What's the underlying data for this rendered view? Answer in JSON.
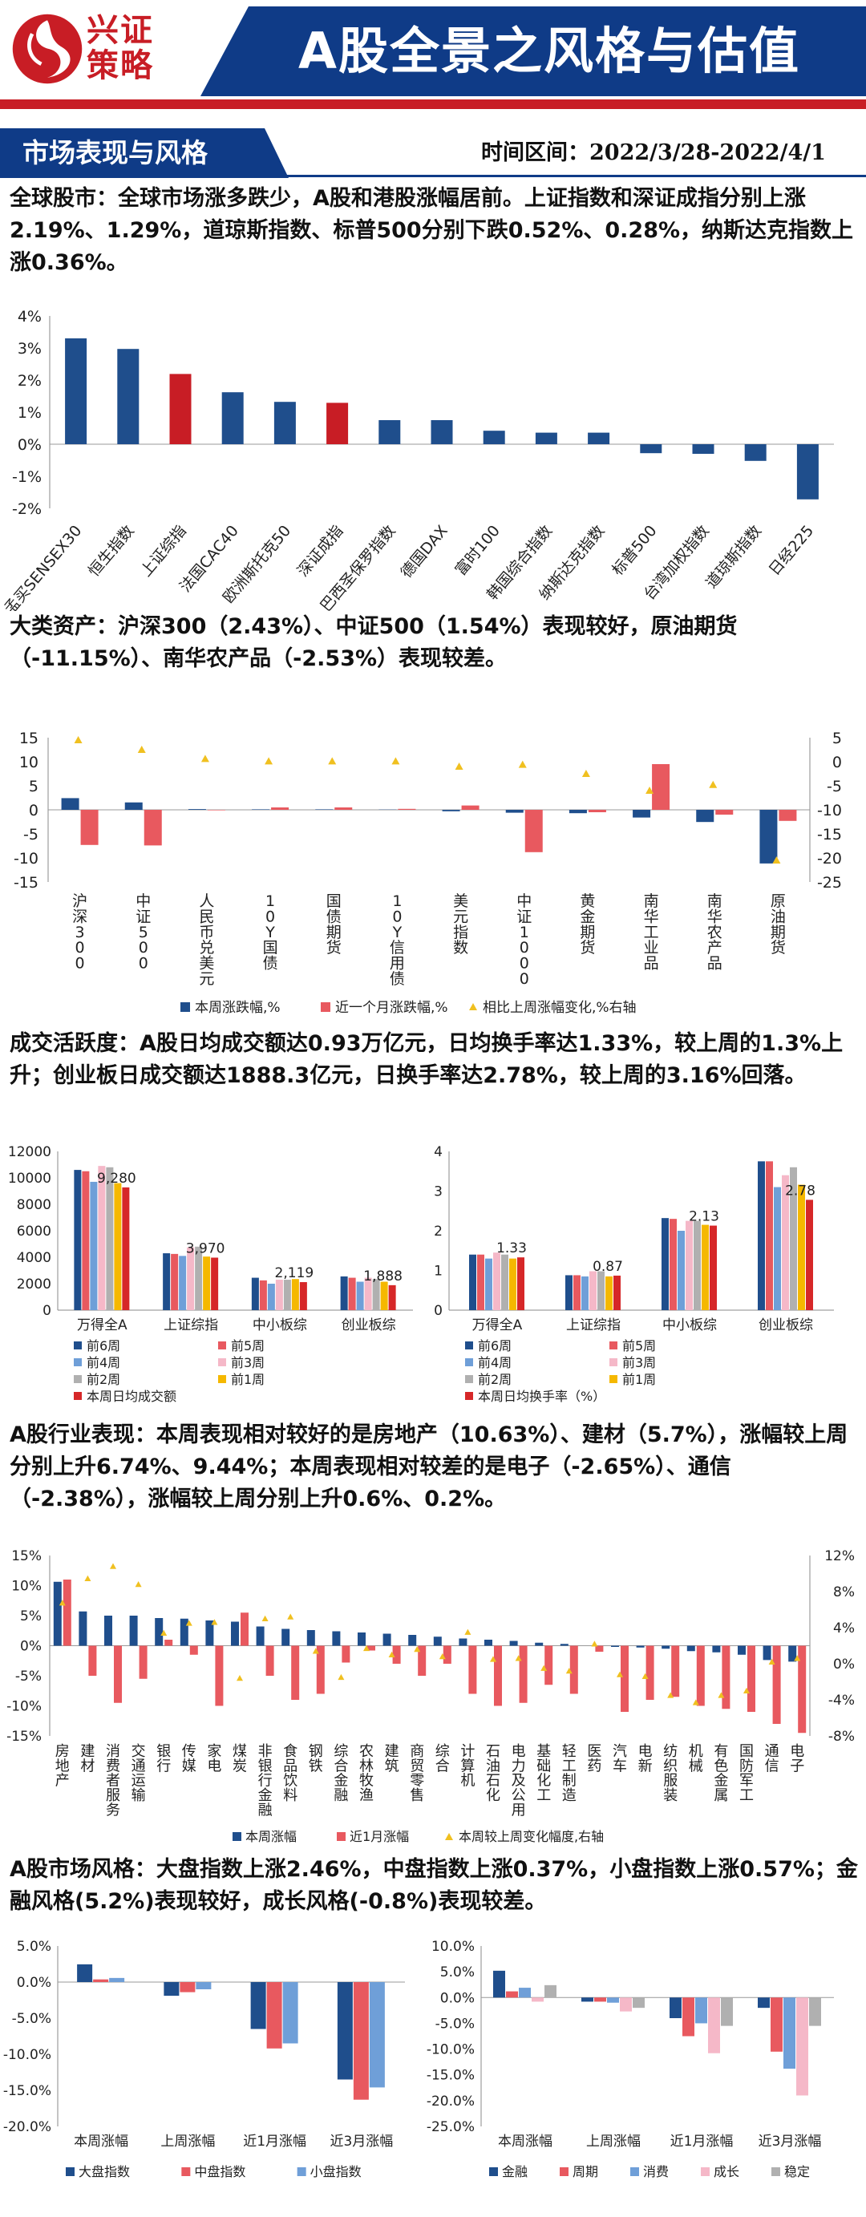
{
  "header": {
    "logo_line1": "兴证",
    "logo_line2": "策略",
    "title": "A股全景之风格与估值",
    "section_tab": "市场表现与风格",
    "time_range": "时间区间：2022/3/28-2022/4/1"
  },
  "paragraphs": {
    "global": "全球股市：全球市场涨多跌少，A股和港股涨幅居前。上证指数和深证成指分别上涨2.19%、1.29%，道琼斯指数、标普500分别下跌0.52%、0.28%，纳斯达克指数上涨0.36%。",
    "assets": "大类资产：沪深300（2.43%）、中证500（1.54%）表现较好，原油期货（-11.15%）、南华农产品（-2.53%）表现较差。",
    "turnover": "成交活跃度：A股日均成交额达0.93万亿元，日均换手率达1.33%，较上周的1.3%上升；创业板日成交额达1888.3亿元，日换手率达2.78%，较上周的3.16%回落。",
    "industry": "A股行业表现：本周表现相对较好的是房地产（10.63%）、建材（5.7%），涨幅较上周分别上升6.74%、9.44%；本周表现相对较差的是电子（-2.65%）、通信（-2.38%），涨幅较上周分别上升0.6%、0.2%。",
    "style": "A股市场风格：大盘指数上涨2.46%，中盘指数上涨0.37%，小盘指数上涨0.57%；金融风格(5.2%)表现较好，成长风格(-0.8%)表现较差。"
  },
  "colors": {
    "navy": "#1f4e8c",
    "red": "#c81d25",
    "salmon": "#e8595f",
    "gold": "#f0c020",
    "c_w6": "#1f4e8c",
    "c_w5": "#e8595f",
    "c_w4": "#6f9fd8",
    "c_w3": "#f5b8c8",
    "c_w2": "#b0b0b0",
    "c_w1": "#f5b800",
    "c_cur": "#d62728"
  },
  "chart_data": [
    {
      "id": "global",
      "type": "bar",
      "categories": [
        "孟买SENSEX30",
        "恒生指数",
        "上证综指",
        "法国CAC40",
        "欧洲斯托克50",
        "深证成指",
        "巴西圣保罗指数",
        "德国DAX",
        "富时100",
        "韩国综合指数",
        "纳斯达克指数",
        "标普500",
        "台湾加权指数",
        "道琼斯指数",
        "日经225"
      ],
      "values": [
        3.3,
        2.97,
        2.19,
        1.62,
        1.32,
        1.29,
        0.75,
        0.75,
        0.42,
        0.36,
        0.36,
        -0.28,
        -0.3,
        -0.52,
        -1.72
      ],
      "highlight": [
        false,
        false,
        true,
        false,
        false,
        true,
        false,
        false,
        false,
        false,
        false,
        false,
        false,
        false,
        false
      ],
      "yticks": [
        "4%",
        "3%",
        "2%",
        "1%",
        "0%",
        "-1%",
        "-2%"
      ],
      "ylim": [
        -2,
        4
      ]
    },
    {
      "id": "assets",
      "type": "bar",
      "categories": [
        "沪深300",
        "中证500",
        "人民币兑美元",
        "10Y国债",
        "国债期货",
        "10Y信用债",
        "美元指数",
        "中证1000",
        "黄金期货",
        "南华工业品",
        "南华农产品",
        "原油期货"
      ],
      "series": [
        {
          "name": "本周涨跌幅,%",
          "values": [
            2.43,
            1.54,
            0.15,
            0.1,
            0.1,
            0.05,
            -0.3,
            -0.6,
            -0.7,
            -1.6,
            -2.53,
            -11.15
          ]
        },
        {
          "name": "近一个月涨跌幅,%",
          "values": [
            -7.3,
            -7.4,
            -0.1,
            0.5,
            0.5,
            0.2,
            0.9,
            -8.8,
            -0.5,
            9.5,
            -1.0,
            -2.3
          ]
        },
        {
          "name": "相比上周涨幅变化,%右轴",
          "values": [
            4.5,
            2.5,
            0.6,
            0.1,
            0.1,
            0.1,
            -1.0,
            -0.6,
            -2.5,
            -6.0,
            -4.8,
            -20.5
          ]
        }
      ],
      "yticks_left": [
        "15",
        "10",
        "5",
        "0",
        "-5",
        "-10",
        "-15"
      ],
      "yticks_right": [
        "5",
        "0",
        "-5",
        "-10",
        "-15",
        "-20",
        "-25"
      ],
      "ylim_left": [
        -15,
        15
      ],
      "ylim_right": [
        -25,
        5
      ]
    },
    {
      "id": "turnover_amount",
      "type": "bar",
      "categories": [
        "万得全A",
        "上证综指",
        "中小板综",
        "创业板综"
      ],
      "series": [
        {
          "name": "前6周",
          "values": [
            10600,
            4300,
            2450,
            2550
          ]
        },
        {
          "name": "前5周",
          "values": [
            10500,
            4250,
            2250,
            2450
          ]
        },
        {
          "name": "前4周",
          "values": [
            9700,
            4100,
            2000,
            2150
          ]
        },
        {
          "name": "前3周",
          "values": [
            10900,
            4750,
            2300,
            2450
          ]
        },
        {
          "name": "前2周",
          "values": [
            10800,
            4800,
            2300,
            2350
          ]
        },
        {
          "name": "前1周",
          "values": [
            9600,
            4050,
            2350,
            2150
          ]
        },
        {
          "name": "本周日均成交额",
          "values": [
            9280,
            3970,
            2119,
            1888
          ]
        }
      ],
      "data_labels": [
        "9,280",
        "3,970",
        "2,119",
        "1,888"
      ],
      "yticks": [
        "12000",
        "10000",
        "8000",
        "6000",
        "4000",
        "2000",
        "0"
      ],
      "ylim": [
        0,
        12000
      ]
    },
    {
      "id": "turnover_rate",
      "type": "bar",
      "categories": [
        "万得全A",
        "上证综指",
        "中小板综",
        "创业板综"
      ],
      "series": [
        {
          "name": "前6周",
          "values": [
            1.4,
            0.88,
            2.32,
            3.75
          ]
        },
        {
          "name": "前5周",
          "values": [
            1.4,
            0.88,
            2.3,
            3.75
          ]
        },
        {
          "name": "前4周",
          "values": [
            1.3,
            0.85,
            2.0,
            3.1
          ]
        },
        {
          "name": "前3周",
          "values": [
            1.45,
            0.98,
            2.25,
            3.4
          ]
        },
        {
          "name": "前2周",
          "values": [
            1.4,
            0.98,
            2.25,
            3.6
          ]
        },
        {
          "name": "前1周",
          "values": [
            1.3,
            0.85,
            2.15,
            3.16
          ]
        },
        {
          "name": "本周日均换手率（%）",
          "values": [
            1.33,
            0.87,
            2.13,
            2.78
          ]
        }
      ],
      "data_labels": [
        "1.33",
        "0.87",
        "2.13",
        "2.78"
      ],
      "yticks": [
        "4",
        "3",
        "2",
        "1",
        "0"
      ],
      "ylim": [
        0,
        4
      ]
    },
    {
      "id": "industry",
      "type": "bar",
      "categories": [
        "房地产",
        "建材",
        "消费者服务",
        "交通运输",
        "银行",
        "传媒",
        "家电",
        "煤炭",
        "非银行金融",
        "食品饮料",
        "钢铁",
        "综合金融",
        "农林牧渔",
        "建筑",
        "商贸零售",
        "综合",
        "计算机",
        "石油石化",
        "电力及公用",
        "基础化工",
        "轻工制造",
        "医药",
        "汽车",
        "电新",
        "纺织服装",
        "机械",
        "有色金属",
        "国防军工",
        "通信",
        "电子"
      ],
      "series": [
        {
          "name": "本周涨幅",
          "values": [
            10.63,
            5.7,
            5.0,
            5.0,
            4.6,
            4.5,
            4.2,
            4.0,
            3.2,
            2.8,
            2.6,
            2.4,
            2.2,
            2.0,
            1.8,
            1.5,
            1.2,
            1.0,
            0.8,
            0.5,
            0.3,
            0.0,
            -0.2,
            -0.3,
            -0.5,
            -0.9,
            -1.1,
            -1.5,
            -2.38,
            -2.65
          ]
        },
        {
          "name": "近1月涨幅",
          "values": [
            11.0,
            -5.0,
            -9.5,
            -5.5,
            1.0,
            -1.5,
            -10.0,
            5.5,
            -5.0,
            -9.0,
            -8.0,
            -2.8,
            -0.8,
            -3.0,
            -5.0,
            -3.0,
            -8.0,
            -10.0,
            -9.5,
            -6.5,
            -8.0,
            -1.0,
            -11.0,
            -9.0,
            -8.5,
            -10.0,
            -10.5,
            -11.0,
            -13.0,
            -14.5
          ]
        },
        {
          "name": "本周较上周变化幅度,右轴",
          "values": [
            6.74,
            9.44,
            10.8,
            8.8,
            3.4,
            4.5,
            4.6,
            -1.6,
            5.0,
            5.2,
            1.4,
            -1.5,
            1.7,
            1.0,
            1.6,
            0.8,
            3.5,
            0.5,
            0.6,
            -0.5,
            -0.8,
            2.2,
            -1.2,
            -1.4,
            -3.5,
            -4.3,
            -3.5,
            -3.0,
            0.2,
            0.6
          ]
        }
      ],
      "yticks_left": [
        "15%",
        "10%",
        "5%",
        "0%",
        "-5%",
        "-10%",
        "-15%"
      ],
      "yticks_right": [
        "12%",
        "8%",
        "4%",
        "0%",
        "-4%",
        "-8%"
      ],
      "ylim_left": [
        -15,
        15
      ],
      "ylim_right": [
        -8,
        12
      ]
    },
    {
      "id": "size_style",
      "type": "bar",
      "categories": [
        "本周涨幅",
        "上周涨幅",
        "近1月涨幅",
        "近3月涨幅"
      ],
      "series": [
        {
          "name": "大盘指数",
          "values": [
            2.46,
            -1.9,
            -6.5,
            -13.5
          ]
        },
        {
          "name": "中盘指数",
          "values": [
            0.37,
            -1.4,
            -9.2,
            -16.3
          ]
        },
        {
          "name": "小盘指数",
          "values": [
            0.57,
            -1.0,
            -8.5,
            -14.6
          ]
        }
      ],
      "yticks": [
        "5.0%",
        "0.0%",
        "-5.0%",
        "-10.0%",
        "-15.0%",
        "-20.0%"
      ],
      "ylim": [
        -20,
        5
      ]
    },
    {
      "id": "sector_style",
      "type": "bar",
      "categories": [
        "本周涨幅",
        "上周涨幅",
        "近1月涨幅",
        "近3月涨幅"
      ],
      "series": [
        {
          "name": "金融",
          "values": [
            5.2,
            -0.8,
            -4.0,
            -2.0
          ]
        },
        {
          "name": "周期",
          "values": [
            1.2,
            -0.8,
            -7.5,
            -10.5
          ]
        },
        {
          "name": "消费",
          "values": [
            1.9,
            -1.0,
            -5.0,
            -13.8
          ]
        },
        {
          "name": "成长",
          "values": [
            -0.8,
            -2.7,
            -10.8,
            -19.0
          ]
        },
        {
          "name": "稳定",
          "values": [
            2.4,
            -2.0,
            -5.5,
            -5.5
          ]
        }
      ],
      "yticks": [
        "10.0%",
        "5.0%",
        "0.0%",
        "-5.0%",
        "-10.0%",
        "-15.0%",
        "-20.0%",
        "-25.0%"
      ],
      "ylim": [
        -25,
        10
      ]
    }
  ]
}
